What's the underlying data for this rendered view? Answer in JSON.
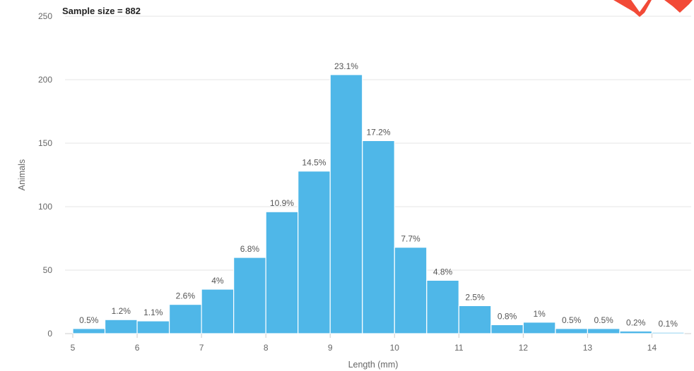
{
  "chart_data": {
    "type": "bar",
    "subtitle": "Sample size = 882",
    "xlabel": "Length (mm)",
    "ylabel": "Animals",
    "xlim": [
      5,
      14.5
    ],
    "ylim": [
      0,
      250
    ],
    "x_ticks": [
      5,
      6,
      7,
      8,
      9,
      10,
      11,
      12,
      13,
      14
    ],
    "y_ticks": [
      0,
      50,
      100,
      150,
      200,
      250
    ],
    "bin_width": 0.5,
    "bins": [
      {
        "start": 5.0,
        "value": 4,
        "label": "0.5%"
      },
      {
        "start": 5.5,
        "value": 11,
        "label": "1.2%"
      },
      {
        "start": 6.0,
        "value": 10,
        "label": "1.1%"
      },
      {
        "start": 6.5,
        "value": 23,
        "label": "2.6%"
      },
      {
        "start": 7.0,
        "value": 35,
        "label": "4%"
      },
      {
        "start": 7.5,
        "value": 60,
        "label": "6.8%"
      },
      {
        "start": 8.0,
        "value": 96,
        "label": "10.9%"
      },
      {
        "start": 8.5,
        "value": 128,
        "label": "14.5%"
      },
      {
        "start": 9.0,
        "value": 204,
        "label": "23.1%"
      },
      {
        "start": 9.5,
        "value": 152,
        "label": "17.2%"
      },
      {
        "start": 10.0,
        "value": 68,
        "label": "7.7%"
      },
      {
        "start": 10.5,
        "value": 42,
        "label": "4.8%"
      },
      {
        "start": 11.0,
        "value": 22,
        "label": "2.5%"
      },
      {
        "start": 11.5,
        "value": 7,
        "label": "0.8%"
      },
      {
        "start": 12.0,
        "value": 9,
        "label": "1%"
      },
      {
        "start": 12.5,
        "value": 4,
        "label": "0.5%"
      },
      {
        "start": 13.0,
        "value": 4,
        "label": "0.5%"
      },
      {
        "start": 13.5,
        "value": 2,
        "label": "0.2%"
      },
      {
        "start": 14.0,
        "value": 1,
        "label": "0.1%"
      }
    ],
    "grid": true,
    "legend": "none",
    "bar_color": "#4fb7e8",
    "accent_shape_color": "#f24a37"
  }
}
